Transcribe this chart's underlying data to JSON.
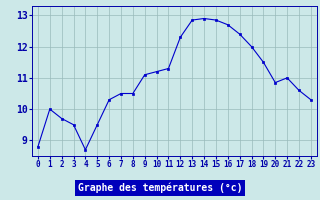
{
  "x": [
    0,
    1,
    2,
    3,
    4,
    5,
    6,
    7,
    8,
    9,
    10,
    11,
    12,
    13,
    14,
    15,
    16,
    17,
    18,
    19,
    20,
    21,
    22,
    23
  ],
  "y": [
    8.8,
    10.0,
    9.7,
    9.5,
    8.7,
    9.5,
    10.3,
    10.5,
    10.5,
    11.1,
    11.2,
    11.3,
    12.3,
    12.85,
    12.9,
    12.85,
    12.7,
    12.4,
    12.0,
    11.5,
    10.85,
    11.0,
    10.6,
    10.3
  ],
  "line_color": "#0000cc",
  "marker_color": "#0000cc",
  "bg_color": "#cce8e8",
  "grid_color": "#99bbbb",
  "xlabel": "Graphe des températures (°c)",
  "xlabel_bg": "#0000bb",
  "xlabel_color": "#ffffff",
  "ylim": [
    8.5,
    13.3
  ],
  "xlim": [
    -0.5,
    23.5
  ],
  "yticks": [
    9,
    10,
    11,
    12,
    13
  ],
  "xtick_labels": [
    "0",
    "1",
    "2",
    "3",
    "4",
    "5",
    "6",
    "7",
    "8",
    "9",
    "10",
    "11",
    "12",
    "13",
    "14",
    "15",
    "16",
    "17",
    "18",
    "19",
    "20",
    "21",
    "22",
    "23"
  ],
  "tick_color": "#0000aa",
  "tick_fontsize": 5.5,
  "xlabel_fontsize": 7.0,
  "ytick_fontsize": 7.0
}
